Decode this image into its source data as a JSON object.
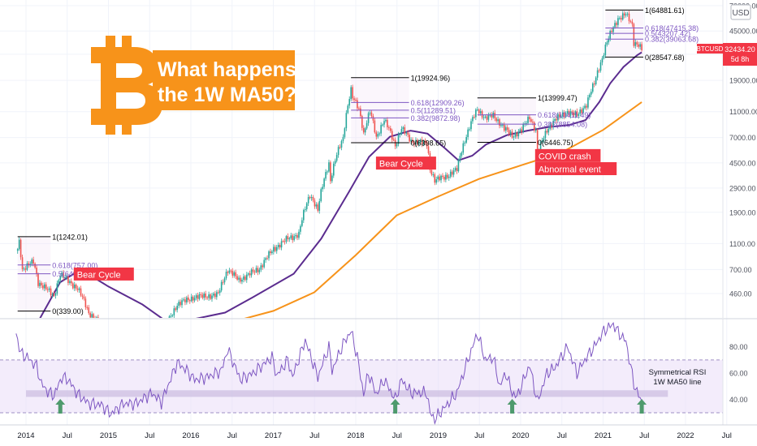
{
  "chart_data": [
    {
      "type": "candlestick",
      "scale": "log",
      "symbol": "BTCUSD",
      "price_label": "32434.20",
      "countdown": "5d 8h",
      "currency": "USD",
      "y_ticks": [
        "70000.00",
        "45000.00",
        "30000.00",
        "19000.00",
        "11000.00",
        "7000.00",
        "4500.00",
        "2900.00",
        "1900.00",
        "1100.00",
        "700.00",
        "460.00"
      ],
      "ylim": [
        240,
        72000
      ],
      "x_ticks": [
        "2014",
        "Jul",
        "2015",
        "Jul",
        "2016",
        "Jul",
        "2017",
        "Jul",
        "2018",
        "Jul",
        "2019",
        "Jul",
        "2020",
        "Jul",
        "2021",
        "Jul",
        "2022",
        "Jul"
      ],
      "price_anchors": [
        [
          "2013-11-25",
          1000
        ],
        [
          "2013-12-02",
          1150
        ],
        [
          "2013-12-16",
          700
        ],
        [
          "2014-02-03",
          800
        ],
        [
          "2014-02-24",
          560
        ],
        [
          "2014-05-05",
          440
        ],
        [
          "2014-06-02",
          640
        ],
        [
          "2014-08-18",
          500
        ],
        [
          "2014-10-06",
          330
        ],
        [
          "2015-01-12",
          210
        ],
        [
          "2015-05-04",
          240
        ],
        [
          "2015-09-01",
          230
        ],
        [
          "2015-11-02",
          380
        ],
        [
          "2016-01-11",
          430
        ],
        [
          "2016-05-01",
          450
        ],
        [
          "2016-06-13",
          700
        ],
        [
          "2016-08-01",
          580
        ],
        [
          "2016-10-31",
          710
        ],
        [
          "2017-01-02",
          1000
        ],
        [
          "2017-03-06",
          1200
        ],
        [
          "2017-04-24",
          1300
        ],
        [
          "2017-06-12",
          2600
        ],
        [
          "2017-07-17",
          1950
        ],
        [
          "2017-09-04",
          4500
        ],
        [
          "2017-09-11",
          3300
        ],
        [
          "2017-11-06",
          7000
        ],
        [
          "2017-12-11",
          16000
        ],
        [
          "2017-12-18",
          14000
        ],
        [
          "2018-01-15",
          11500
        ],
        [
          "2018-02-05",
          7500
        ],
        [
          "2018-03-05",
          11000
        ],
        [
          "2018-04-02",
          7000
        ],
        [
          "2018-05-07",
          9500
        ],
        [
          "2018-06-25",
          6100
        ],
        [
          "2018-07-23",
          8200
        ],
        [
          "2018-09-03",
          6600
        ],
        [
          "2018-11-12",
          6300
        ],
        [
          "2018-11-26",
          4100
        ],
        [
          "2018-12-17",
          3300
        ],
        [
          "2019-02-11",
          3600
        ],
        [
          "2019-03-25",
          4000
        ],
        [
          "2019-05-13",
          7800
        ],
        [
          "2019-06-24",
          11500
        ],
        [
          "2019-07-29",
          9800
        ],
        [
          "2019-09-02",
          10300
        ],
        [
          "2019-10-21",
          8200
        ],
        [
          "2019-11-25",
          7200
        ],
        [
          "2020-01-06",
          8000
        ],
        [
          "2020-02-10",
          10000
        ],
        [
          "2020-03-09",
          7900
        ],
        [
          "2020-03-16",
          5200
        ],
        [
          "2020-04-27",
          8000
        ],
        [
          "2020-06-01",
          9500
        ],
        [
          "2020-07-27",
          11000
        ],
        [
          "2020-09-07",
          10300
        ],
        [
          "2020-10-19",
          12500
        ],
        [
          "2020-11-23",
          18000
        ],
        [
          "2020-12-28",
          28000
        ],
        [
          "2021-01-11",
          34000
        ],
        [
          "2021-02-15",
          48000
        ],
        [
          "2021-03-08",
          56000
        ],
        [
          "2021-04-12",
          60000
        ],
        [
          "2021-05-10",
          50000
        ],
        [
          "2021-05-17",
          37000
        ],
        [
          "2021-06-07",
          35500
        ],
        [
          "2021-06-21",
          32434
        ]
      ],
      "ma50_anchors": [
        [
          "2014-02-01",
          240
        ],
        [
          "2014-06-01",
          560
        ],
        [
          "2014-08-01",
          650
        ],
        [
          "2014-10-01",
          650
        ],
        [
          "2015-01-01",
          520
        ],
        [
          "2015-06-01",
          380
        ],
        [
          "2015-10-01",
          270
        ],
        [
          "2016-06-01",
          330
        ],
        [
          "2016-10-01",
          430
        ],
        [
          "2017-04-01",
          650
        ],
        [
          "2017-08-01",
          1200
        ],
        [
          "2017-12-01",
          2700
        ],
        [
          "2018-03-01",
          5000
        ],
        [
          "2018-06-01",
          7100
        ],
        [
          "2018-09-01",
          7900
        ],
        [
          "2018-11-15",
          7500
        ],
        [
          "2019-02-01",
          5800
        ],
        [
          "2019-04-01",
          4700
        ],
        [
          "2019-06-01",
          5100
        ],
        [
          "2019-08-01",
          6200
        ],
        [
          "2019-11-01",
          7300
        ],
        [
          "2020-02-01",
          7900
        ],
        [
          "2020-05-01",
          8400
        ],
        [
          "2020-08-01",
          8700
        ],
        [
          "2020-10-15",
          9500
        ],
        [
          "2020-12-15",
          13000
        ],
        [
          "2021-02-01",
          18000
        ],
        [
          "2021-04-01",
          24000
        ],
        [
          "2021-06-01",
          29500
        ],
        [
          "2021-06-21",
          31000
        ]
      ],
      "ma200_anchors": [
        [
          "2016-04-01",
          240
        ],
        [
          "2016-07-01",
          280
        ],
        [
          "2017-01-01",
          340
        ],
        [
          "2017-07-01",
          470
        ],
        [
          "2018-01-01",
          900
        ],
        [
          "2018-07-01",
          1800
        ],
        [
          "2019-01-01",
          2500
        ],
        [
          "2019-07-01",
          3400
        ],
        [
          "2020-01-01",
          4300
        ],
        [
          "2020-07-01",
          5400
        ],
        [
          "2021-01-01",
          8000
        ],
        [
          "2021-06-21",
          13000
        ]
      ],
      "fib_sets": [
        {
          "start": "2013-11-25",
          "end": "2014-04-20",
          "levels": [
            {
              "text": "1(1242.01)",
              "price": 1242.01,
              "color": "#000000"
            },
            {
              "text": "0.618(757.00)",
              "price": 757,
              "color": "#7e57c2"
            },
            {
              "text": "0.5(649.64)",
              "price": 649.64,
              "color": "#7e57c2"
            },
            {
              "text": "0(339.00)",
              "price": 339,
              "color": "#000000"
            }
          ]
        },
        {
          "start": "2017-12-11",
          "end": "2018-08-25",
          "levels": [
            {
              "text": "1(19924.96)",
              "price": 19924.96,
              "color": "#000000"
            },
            {
              "text": "0.618(12909.26)",
              "price": 12909.26,
              "color": "#7e57c2"
            },
            {
              "text": "0.5(11289.51)",
              "price": 11289.51,
              "color": "#7e57c2"
            },
            {
              "text": "0.382(9872.98)",
              "price": 9872.98,
              "color": "#7e57c2"
            },
            {
              "text": "0(6398.65)",
              "price": 6398.65,
              "color": "#000000"
            }
          ]
        },
        {
          "start": "2019-06-24",
          "end": "2020-03-10",
          "levels": [
            {
              "text": "1(13999.47)",
              "price": 13999.47,
              "color": "#000000"
            },
            {
              "text": "0.618(10411.49)",
              "price": 10411.49,
              "color": "#7e57c2"
            },
            {
              "text": "0.382(8854.08)",
              "price": 8854.08,
              "color": "#7e57c2"
            },
            {
              "text": "0(6446.75)",
              "price": 6446.75,
              "color": "#000000"
            }
          ]
        },
        {
          "start": "2021-01-11",
          "end": "2021-06-28",
          "levels": [
            {
              "text": "1(64881.61)",
              "price": 64881.61,
              "color": "#000000"
            },
            {
              "text": "0.618(47415.38)",
              "price": 47415.38,
              "color": "#7e57c2"
            },
            {
              "text": "0.5(43207.42)",
              "price": 43207.42,
              "color": "#7e57c2"
            },
            {
              "text": "0.382(39063.68)",
              "price": 39063.68,
              "color": "#7e57c2"
            },
            {
              "text": "0(28547.68)",
              "price": 28547.68,
              "color": "#000000"
            }
          ]
        }
      ],
      "annotations": [
        {
          "text": "Bear Cycle",
          "date": "2014-08-15",
          "price": 620
        },
        {
          "text": "Bear Cycle",
          "date": "2018-04-15",
          "price": 4300
        },
        {
          "text": "COVID crash",
          "date": "2020-03-20",
          "price": 4900
        },
        {
          "text": "Abnormal event",
          "date": "2020-03-20",
          "price": 3900
        }
      ],
      "title_lines": [
        "What happens on",
        "the 1W MA50?"
      ],
      "colors": {
        "up": "#26a69a",
        "down": "#ef5350",
        "ma50": "#5b2c8f",
        "ma200": "#f7931a",
        "fib_zone": "#f3e5f5",
        "bitcoin": "#f7931a",
        "title_box": "#f7931a",
        "label_box": "#f23645"
      }
    },
    {
      "type": "line",
      "y_ticks": [
        "80.00",
        "60.00",
        "40.00"
      ],
      "ylim": [
        22,
        100
      ],
      "band": [
        30,
        70
      ],
      "zone": [
        42,
        47
      ],
      "rsi_anchors": [
        [
          "2013-11-18",
          90
        ],
        [
          "2013-12-09",
          75
        ],
        [
          "2014-01-06",
          72
        ],
        [
          "2014-02-17",
          65
        ],
        [
          "2014-03-10",
          52
        ],
        [
          "2014-04-07",
          46
        ],
        [
          "2014-05-05",
          43
        ],
        [
          "2014-06-09",
          57
        ],
        [
          "2014-07-07",
          55
        ],
        [
          "2014-08-18",
          44
        ],
        [
          "2014-10-06",
          37
        ],
        [
          "2014-12-01",
          36
        ],
        [
          "2015-01-12",
          29
        ],
        [
          "2015-02-09",
          33
        ],
        [
          "2015-03-09",
          37
        ],
        [
          "2015-05-04",
          37
        ],
        [
          "2015-07-13",
          45
        ],
        [
          "2015-08-24",
          38
        ],
        [
          "2015-11-02",
          68
        ],
        [
          "2015-12-14",
          62
        ],
        [
          "2016-01-18",
          55
        ],
        [
          "2016-03-14",
          57
        ],
        [
          "2016-05-16",
          62
        ],
        [
          "2016-06-13",
          78
        ],
        [
          "2016-08-08",
          55
        ],
        [
          "2016-10-03",
          60
        ],
        [
          "2016-12-26",
          72
        ],
        [
          "2017-01-16",
          58
        ],
        [
          "2017-03-06",
          70
        ],
        [
          "2017-03-27",
          57
        ],
        [
          "2017-05-22",
          85
        ],
        [
          "2017-07-17",
          57
        ],
        [
          "2017-09-04",
          80
        ],
        [
          "2017-09-18",
          62
        ],
        [
          "2017-11-06",
          82
        ],
        [
          "2017-12-11",
          92
        ],
        [
          "2018-01-08",
          72
        ],
        [
          "2018-02-05",
          44
        ],
        [
          "2018-02-26",
          60
        ],
        [
          "2018-04-02",
          44
        ],
        [
          "2018-05-07",
          55
        ],
        [
          "2018-06-25",
          40
        ],
        [
          "2018-07-23",
          55
        ],
        [
          "2018-09-03",
          45
        ],
        [
          "2018-11-12",
          45
        ],
        [
          "2018-11-26",
          30
        ],
        [
          "2018-12-17",
          25
        ],
        [
          "2019-02-04",
          35
        ],
        [
          "2019-03-25",
          45
        ],
        [
          "2019-05-13",
          70
        ],
        [
          "2019-06-24",
          90
        ],
        [
          "2019-07-29",
          70
        ],
        [
          "2019-09-02",
          72
        ],
        [
          "2019-09-30",
          50
        ],
        [
          "2019-10-28",
          60
        ],
        [
          "2019-11-25",
          45
        ],
        [
          "2019-12-16",
          42
        ],
        [
          "2020-02-10",
          66
        ],
        [
          "2020-03-16",
          38
        ],
        [
          "2020-04-27",
          60
        ],
        [
          "2020-06-01",
          64
        ],
        [
          "2020-07-27",
          80
        ],
        [
          "2020-09-07",
          60
        ],
        [
          "2020-10-19",
          72
        ],
        [
          "2020-11-23",
          80
        ],
        [
          "2020-12-28",
          90
        ],
        [
          "2021-01-11",
          93
        ],
        [
          "2021-02-15",
          97
        ],
        [
          "2021-03-08",
          91
        ],
        [
          "2021-04-12",
          84
        ],
        [
          "2021-05-17",
          52
        ],
        [
          "2021-06-07",
          43
        ],
        [
          "2021-06-21",
          38
        ]
      ],
      "notes": [
        "Symmetrical RSI",
        "1W MA50 line"
      ],
      "arrow_dates": [
        "2014-06-02",
        "2018-06-25",
        "2019-11-25",
        "2021-06-21"
      ],
      "colors": {
        "line": "#7e57c2",
        "band": "#e9ddf8",
        "zone": "#cbbcdf",
        "arrow": "#4e9a6d"
      }
    }
  ]
}
